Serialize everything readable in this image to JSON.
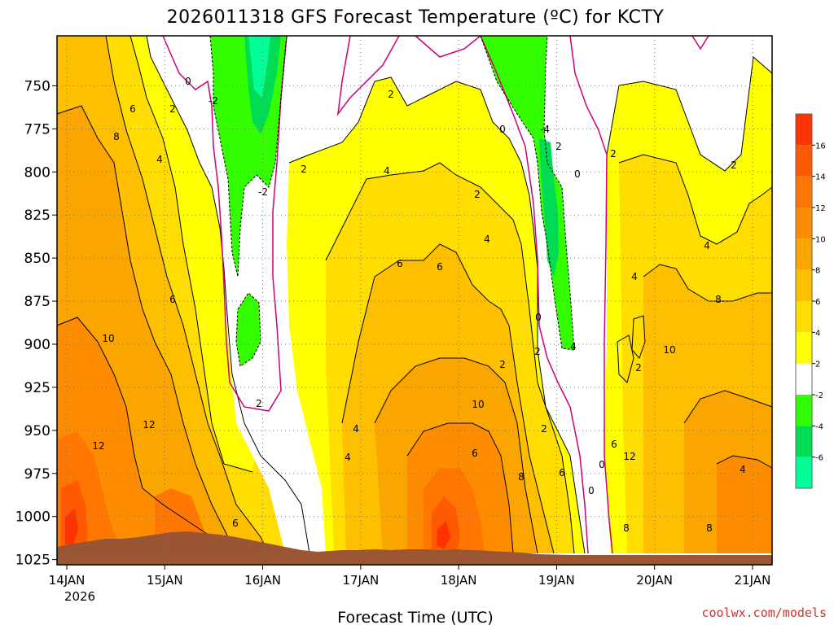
{
  "chart_data": {
    "type": "heatmap",
    "title": "2026011318 GFS Forecast Temperature (ºC) for KCTY",
    "xlabel": "Forecast Time (UTC)",
    "ylabel": "",
    "credit": "coolwx.com/models",
    "x_ticks": [
      "14JAN",
      "15JAN",
      "16JAN",
      "17JAN",
      "18JAN",
      "19JAN",
      "20JAN",
      "21JAN"
    ],
    "x_tick_sub": "2026",
    "x_range_days": [
      -0.1,
      7.2
    ],
    "y_ticks": [
      750,
      775,
      800,
      825,
      850,
      875,
      900,
      925,
      950,
      975,
      1000,
      1025
    ],
    "y_range_hpa": [
      1028,
      721
    ],
    "colorbar": {
      "levels": [
        16,
        14,
        12,
        10,
        8,
        6,
        4,
        2,
        -2,
        -4,
        -6
      ],
      "colors": [
        "#ff3300",
        "#ff5a00",
        "#ff7700",
        "#fd8c00",
        "#faa500",
        "#fdbf00",
        "#ffdd00",
        "#ffff00",
        "#ffffff",
        "#33ff00",
        "#00dd55",
        "#00ff99"
      ]
    },
    "terrain_color": "#9a5533",
    "contour_labels": [
      "0",
      "-2",
      "6",
      "2",
      "8",
      "4",
      "2",
      "-2",
      "2",
      "0",
      "2",
      "4",
      "-4",
      "2",
      "0",
      "2",
      "2",
      "4",
      "4",
      "6",
      "4",
      "6",
      "0",
      "2",
      "2",
      "6",
      "8",
      "2",
      "10",
      "10",
      "12",
      "6",
      "2",
      "4",
      "8",
      "10",
      "12",
      "4",
      "6",
      "0",
      "6",
      "12",
      "4",
      "0",
      "2",
      "4",
      "8",
      "8",
      "6"
    ]
  }
}
